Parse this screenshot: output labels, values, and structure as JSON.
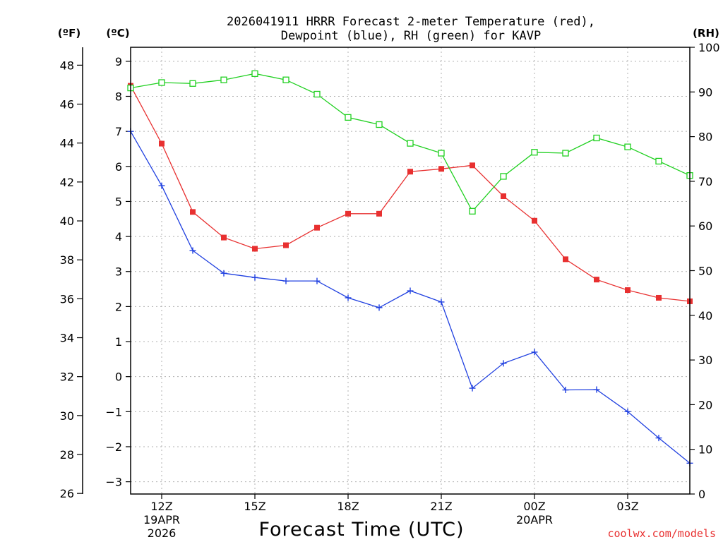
{
  "chart_data": {
    "type": "line",
    "title_line1": "2026041911 HRRR Forecast 2-meter Temperature (red),",
    "title_line2": "Dewpoint (blue), RH (green) for KAVP",
    "xlabel": "Forecast Time (UTC)",
    "unit_f": "(ºF)",
    "unit_c": "(ºC)",
    "unit_rh": "(RH)",
    "credit": "coolwx.com/models",
    "x_hours": [
      11,
      12,
      13,
      14,
      15,
      16,
      17,
      18,
      19,
      20,
      21,
      22,
      23,
      24,
      25,
      26,
      27,
      28,
      29
    ],
    "x_ticks": [
      {
        "hour": 12,
        "label": "12Z",
        "sub1": "19APR",
        "sub2": "2026"
      },
      {
        "hour": 15,
        "label": "15Z",
        "sub1": "",
        "sub2": ""
      },
      {
        "hour": 18,
        "label": "18Z",
        "sub1": "",
        "sub2": ""
      },
      {
        "hour": 21,
        "label": "21Z",
        "sub1": "",
        "sub2": ""
      },
      {
        "hour": 24,
        "label": "00Z",
        "sub1": "20APR",
        "sub2": ""
      },
      {
        "hour": 27,
        "label": "03Z",
        "sub1": "",
        "sub2": ""
      }
    ],
    "c_ticks": [
      "-3",
      "-2",
      "-1",
      "0",
      "1",
      "2",
      "3",
      "4",
      "5",
      "6",
      "7",
      "8",
      "9"
    ],
    "f_ticks": [
      "26",
      "28",
      "30",
      "32",
      "34",
      "36",
      "38",
      "40",
      "42",
      "44",
      "46",
      "48"
    ],
    "rh_ticks": [
      "0",
      "10",
      "20",
      "30",
      "40",
      "50",
      "60",
      "70",
      "80",
      "90",
      "100"
    ],
    "c_range": [
      -3.35,
      9.4
    ],
    "rh_range": [
      0,
      100
    ],
    "x_range": [
      11,
      29
    ],
    "series": [
      {
        "name": "Temperature",
        "color": "#e83030",
        "marker": "filled-square",
        "values": [
          8.3,
          6.65,
          4.7,
          3.97,
          3.65,
          3.75,
          4.25,
          4.65,
          4.65,
          5.85,
          5.93,
          6.03,
          5.15,
          4.45,
          3.35,
          2.77,
          2.47,
          2.25,
          2.15
        ]
      },
      {
        "name": "Dewpoint",
        "color": "#2040e0",
        "marker": "plus",
        "values": [
          7.0,
          5.45,
          3.6,
          2.95,
          2.83,
          2.73,
          2.73,
          2.25,
          1.97,
          2.45,
          2.13,
          -0.33,
          0.38,
          0.7,
          -0.38,
          -0.37,
          -1.0,
          -1.75,
          -2.47
        ]
      },
      {
        "name": "RH",
        "color": "#20d020",
        "marker": "open-square",
        "values": [
          90.9,
          92.1,
          91.9,
          92.7,
          94.1,
          92.7,
          89.5,
          84.3,
          82.7,
          78.5,
          76.3,
          63.3,
          71.1,
          76.5,
          76.3,
          79.7,
          77.7,
          74.5,
          71.3
        ]
      }
    ]
  }
}
